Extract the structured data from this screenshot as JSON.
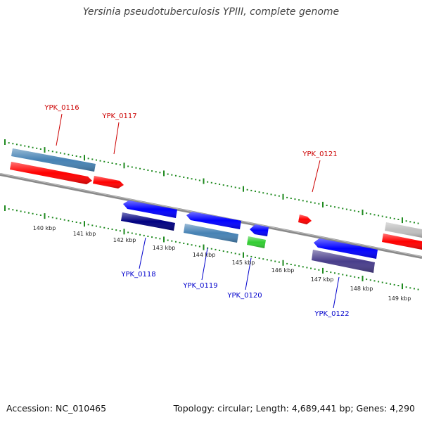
{
  "title": "Yersinia pseudotuberculosis YPIII, complete genome",
  "footer": {
    "accession": "Accession: NC_010465",
    "topology": "Topology: circular; Length: 4,689,441 bp; Genes: 4,290"
  },
  "colors": {
    "backbone": "#8a8a8a",
    "ruler_tick": "#1f8a1f",
    "label_forward": "#cc0000",
    "label_reverse": "#0000cc",
    "kbp_label": "#222222"
  },
  "ruler_labels": [
    "140 kbp",
    "141 kbp",
    "142 kbp",
    "143 kbp",
    "144 kbp",
    "145 kbp",
    "146 kbp",
    "147 kbp",
    "148 kbp",
    "149 kbp"
  ],
  "genes": [
    {
      "id": "g-fwd-1",
      "label": "",
      "strand": "forward",
      "color": "#4682b4"
    },
    {
      "id": "g-fwd-2",
      "label": "",
      "strand": "forward",
      "color": "#ff0000"
    },
    {
      "id": "g-fwd-3",
      "label": "",
      "strand": "forward",
      "color": "#ff0000"
    },
    {
      "id": "g-fwd-4",
      "label": "",
      "strand": "forward",
      "color": "#ff0000"
    },
    {
      "id": "g-fwd-5",
      "label": "",
      "strand": "forward",
      "color": "#c0c0c0"
    },
    {
      "id": "g-fwd-6",
      "label": "",
      "strand": "forward",
      "color": "#ff0000"
    },
    {
      "id": "g-rev-1",
      "label": "",
      "strand": "reverse",
      "color": "#0000ff"
    },
    {
      "id": "g-rev-2",
      "label": "",
      "strand": "reverse",
      "color": "#000080"
    },
    {
      "id": "g-rev-3",
      "label": "",
      "strand": "reverse",
      "color": "#0000ff"
    },
    {
      "id": "g-rev-4",
      "label": "",
      "strand": "reverse",
      "color": "#4682b4"
    },
    {
      "id": "g-rev-5",
      "label": "",
      "strand": "reverse",
      "color": "#0000ff"
    },
    {
      "id": "g-rev-6",
      "label": "",
      "strand": "reverse",
      "color": "#32cd32"
    },
    {
      "id": "g-rev-7",
      "label": "",
      "strand": "reverse",
      "color": "#0000ff"
    },
    {
      "id": "g-rev-8",
      "label": "",
      "strand": "reverse",
      "color": "#483d8b"
    }
  ],
  "gene_labels": [
    {
      "text": "YPK_0116",
      "strand": "forward"
    },
    {
      "text": "YPK_0117",
      "strand": "forward"
    },
    {
      "text": "YPK_0121",
      "strand": "forward"
    },
    {
      "text": "YPK_0118",
      "strand": "reverse"
    },
    {
      "text": "YPK_0119",
      "strand": "reverse"
    },
    {
      "text": "YPK_0120",
      "strand": "reverse"
    },
    {
      "text": "YPK_0122",
      "strand": "reverse"
    }
  ]
}
